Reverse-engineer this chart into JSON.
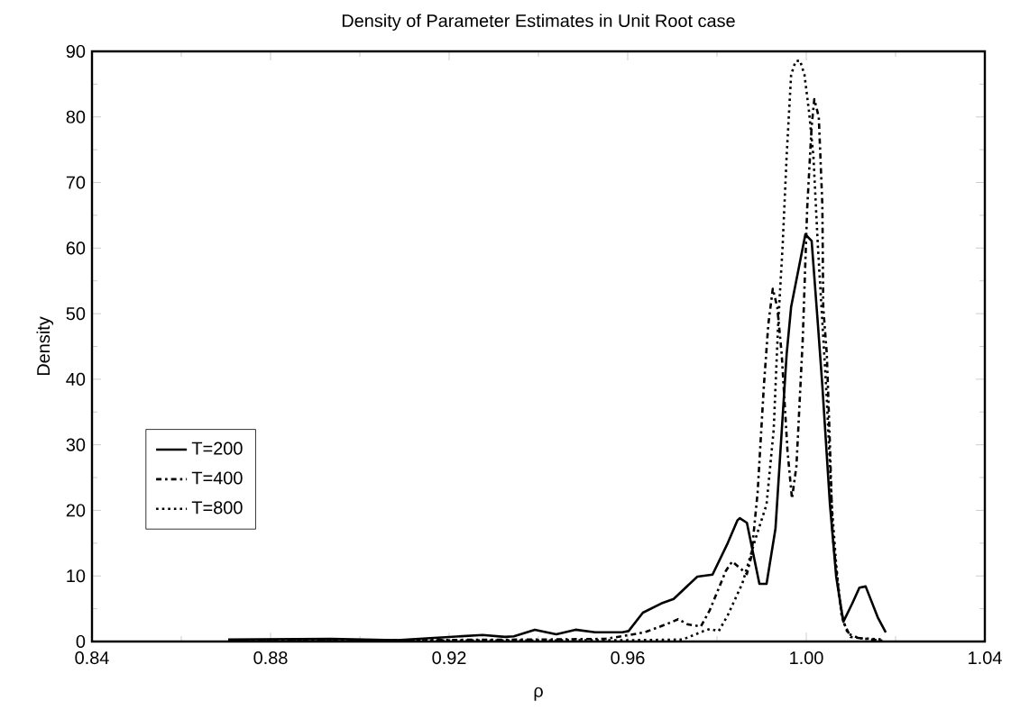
{
  "chart_data": {
    "type": "line",
    "title": "Density of Parameter Estimates in Unit Root case",
    "xlabel": "ρ",
    "ylabel": "Density",
    "xlim": [
      0.84,
      1.04
    ],
    "ylim": [
      0,
      90
    ],
    "xticks": [
      0.84,
      0.88,
      0.92,
      0.96,
      {
        "value": 1.0,
        "label": "1.00"
      },
      1.04
    ],
    "yticks": [
      0,
      10,
      20,
      30,
      40,
      50,
      60,
      70,
      80,
      90
    ],
    "grid": false,
    "legend": "left",
    "series": [
      {
        "name": "T=200",
        "color": "#000000",
        "line_style": "solid",
        "x": [
          0.8705,
          0.8935,
          0.9083,
          0.9275,
          0.9325,
          0.9345,
          0.9392,
          0.944,
          0.9483,
          0.9527,
          0.9588,
          0.9602,
          0.9634,
          0.9675,
          0.9703,
          0.9756,
          0.979,
          0.9824,
          0.9846,
          0.9851,
          0.9867,
          0.9895,
          0.9911,
          0.9931,
          0.9956,
          0.9966,
          0.9998,
          1.0012,
          1.0026,
          1.0036,
          1.0053,
          1.0067,
          1.0083,
          1.0103,
          1.0119,
          1.0133,
          1.016,
          1.0178
        ],
        "values": [
          0.3,
          0.4,
          0.2,
          1.0,
          0.7,
          0.8,
          1.8,
          1.1,
          1.8,
          1.4,
          1.4,
          1.6,
          4.4,
          5.8,
          6.5,
          9.9,
          10.2,
          15.0,
          18.5,
          18.8,
          18.1,
          8.8,
          8.8,
          17.2,
          43.8,
          51,
          62.1,
          61.1,
          48.4,
          39,
          20.9,
          9.9,
          3.0,
          5.8,
          8.2,
          8.4,
          3.7,
          1.4
        ]
      },
      {
        "name": "T=400",
        "color": "#000000",
        "line_style": "dashdotted",
        "x": [
          0.8705,
          0.94,
          0.955,
          0.9622,
          0.9642,
          0.9689,
          0.9713,
          0.9735,
          0.9764,
          0.9784,
          0.982,
          0.9834,
          0.9867,
          0.9877,
          0.9891,
          0.9905,
          0.9915,
          0.9925,
          0.9935,
          0.9945,
          0.9958,
          0.9968,
          0.9978,
          0.9992,
          1.0002,
          1.0012,
          1.0018,
          1.0028,
          1.0036,
          1.0038,
          1.0046,
          1.0053,
          1.0059,
          1.0073,
          1.0083,
          1.0099,
          1.0147,
          1.0174
        ],
        "values": [
          0.1,
          0.3,
          0.4,
          1.2,
          1.5,
          2.7,
          3.4,
          2.6,
          2.3,
          4.8,
          10.8,
          12.2,
          10.3,
          13,
          22.7,
          39,
          48.4,
          53.8,
          51,
          43.8,
          29,
          21.8,
          26.8,
          46,
          66,
          78.6,
          82.7,
          80,
          66.6,
          51,
          43.8,
          30,
          16.3,
          7.1,
          3.0,
          0.7,
          0.3,
          0.1
        ]
      },
      {
        "name": "T=800",
        "color": "#000000",
        "line_style": "dotted",
        "x": [
          0.8705,
          0.96,
          0.9723,
          0.977,
          0.9784,
          0.9804,
          0.9824,
          0.9857,
          0.9885,
          0.9911,
          0.9927,
          0.9937,
          0.9947,
          0.9956,
          0.9966,
          0.9976,
          0.9986,
          0.9996,
          1.0006,
          1.0016,
          1.0026,
          1.0036,
          1.0046,
          1.0057,
          1.0067,
          1.0079,
          1.0093,
          1.0119,
          1.0174
        ],
        "values": [
          0.1,
          0.2,
          0.3,
          1.6,
          1.9,
          1.6,
          4.0,
          8.9,
          15.4,
          20.9,
          32.3,
          48.4,
          60.3,
          74,
          86.4,
          88.5,
          88.6,
          86.4,
          80.9,
          74,
          60.3,
          48.8,
          37,
          20.9,
          11.7,
          4.0,
          1.2,
          0.5,
          0.3
        ]
      }
    ]
  }
}
